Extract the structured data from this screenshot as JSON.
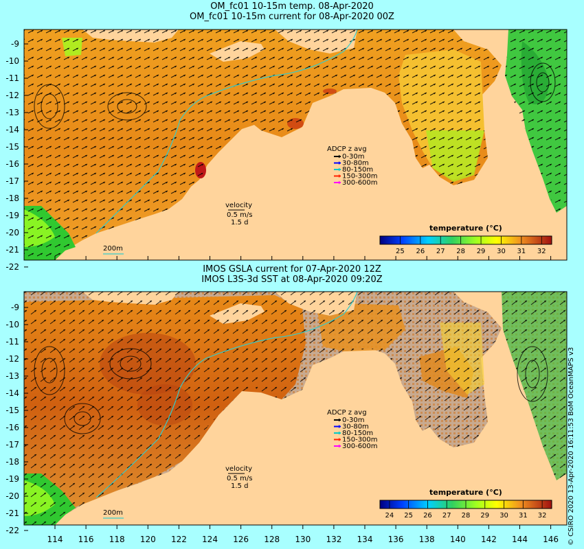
{
  "top": {
    "title_line1": "OM_fc01 10-15m temp. 08-Apr-2020",
    "title_line2": "OM_fc01 10-15m current for 08-Apr-2020 00Z",
    "colorbar": {
      "title": "temperature (°C)",
      "ticks": [
        "25",
        "26",
        "27",
        "28",
        "29",
        "30",
        "31",
        "32"
      ],
      "min": 24,
      "max": 32.5
    }
  },
  "bottom": {
    "title_line1": "IMOS GSLA current for 07-Apr-2020 12Z",
    "title_line2": "IMOS L3S-3d SST at 08-Apr-2020 09:20Z",
    "colorbar": {
      "title": "temperature (°C)",
      "ticks": [
        "24",
        "25",
        "26",
        "27",
        "28",
        "29",
        "30",
        "31",
        "32"
      ],
      "min": 23.5,
      "max": 32.5
    }
  },
  "latitude_ticks": [
    "-9",
    "-10",
    "-11",
    "-12",
    "-13",
    "-14",
    "-15",
    "-16",
    "-17",
    "-18",
    "-19",
    "-20",
    "-21",
    "-22"
  ],
  "longitude_ticks": [
    "114",
    "116",
    "118",
    "120",
    "122",
    "124",
    "126",
    "128",
    "130",
    "132",
    "134",
    "136",
    "138",
    "140",
    "142",
    "144",
    "146"
  ],
  "adcp_legend": {
    "title": "ADCP z avg",
    "items": [
      {
        "label": "0-30m",
        "color": "#000000"
      },
      {
        "label": "30-80m",
        "color": "#0000ff"
      },
      {
        "label": "80-150m",
        "color": "#00c8c8"
      },
      {
        "label": "150-300m",
        "color": "#ff2000"
      },
      {
        "label": "300-600m",
        "color": "#ff00ff"
      }
    ]
  },
  "velocity_legend": {
    "title": "velocity",
    "value": "0.5 m/s",
    "time": "1.5 d"
  },
  "isobath_label": "200m",
  "credit": "© CSIRO 2020   13-Apr-2020 16:11:53 BoM OceanMAPS v3",
  "colors": {
    "land": "#ffd49c",
    "background": "#a8ffff",
    "isobath": "#33cccc",
    "no_data": "#c8aa90"
  }
}
